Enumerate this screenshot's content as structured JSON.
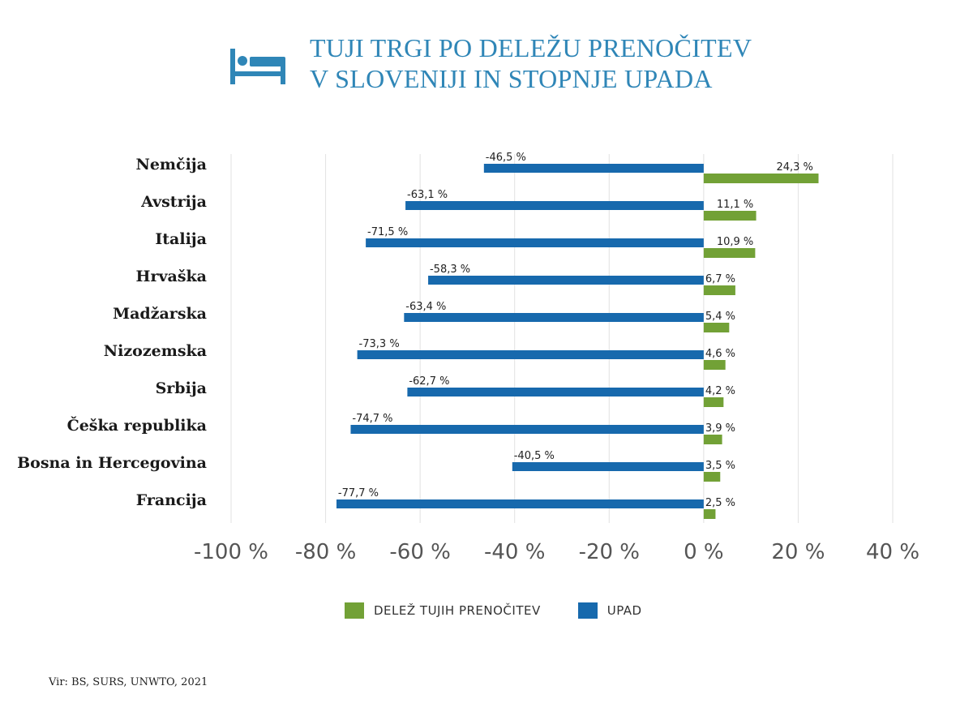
{
  "header": {
    "icon": "bed-icon",
    "title_line1": "TUJI TRGI PO DELEŽU PRENOČITEV",
    "title_line2": "V SLOVENIJI IN STOPNJE UPADA"
  },
  "colors": {
    "blue": "#1769ad",
    "green": "#72a136",
    "title": "#2f86b7",
    "grid": "#e2e2e2"
  },
  "chart_data": {
    "type": "bar",
    "orientation": "horizontal",
    "categories": [
      "Nemčija",
      "Avstrija",
      "Italija",
      "Hrvaška",
      "Madžarska",
      "Nizozemska",
      "Srbija",
      "Češka republika",
      "Bosna in Hercegovina",
      "Francija"
    ],
    "series": [
      {
        "name": "UPAD",
        "color": "#1769ad",
        "values": [
          -46.5,
          -63.1,
          -71.5,
          -58.3,
          -63.4,
          -73.3,
          -62.7,
          -74.7,
          -40.5,
          -77.7
        ],
        "labels": [
          "-46,5 %",
          "-63,1 %",
          "-71,5 %",
          "-58,3 %",
          "-63,4 %",
          "-73,3 %",
          "-62,7 %",
          "-74,7 %",
          "-40,5 %",
          "-77,7 %"
        ]
      },
      {
        "name": "DELEŽ TUJIH PRENOČITEV",
        "color": "#72a136",
        "values": [
          24.3,
          11.1,
          10.9,
          6.7,
          5.4,
          4.6,
          4.2,
          3.9,
          3.5,
          2.5
        ],
        "labels": [
          "24,3 %",
          "11,1 %",
          "10,9 %",
          "6,7 %",
          "5,4 %",
          "4,6 %",
          "4,2 %",
          "3,9 %",
          "3,5 %",
          "2,5 %"
        ]
      }
    ],
    "xlim": [
      -100,
      40
    ],
    "xticks": [
      -100,
      -80,
      -60,
      -40,
      -20,
      0,
      20,
      40
    ],
    "xtick_labels": [
      "-100 %",
      "-80 %",
      "-60 %",
      "-40 %",
      "-20 %",
      "0 %",
      "20 %",
      "40 %"
    ],
    "grid": true,
    "legend_position": "bottom"
  },
  "legend": {
    "share_label": "DELEŽ TUJIH PRENOČITEV",
    "decline_label": "UPAD"
  },
  "source": "Vir: BS, SURS, UNWTO, 2021"
}
